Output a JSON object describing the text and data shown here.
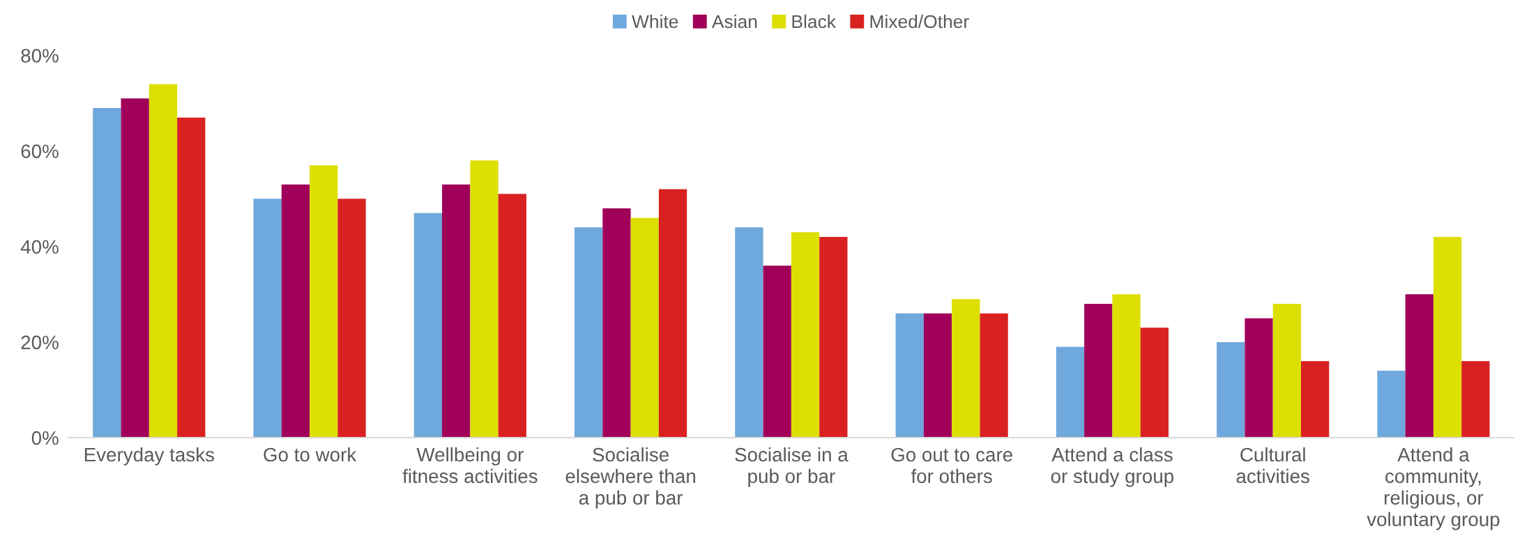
{
  "chart_data": {
    "type": "bar",
    "categories": [
      "Everyday tasks",
      "Go to work",
      "Wellbeing or\nfitness activities",
      "Socialise\nelsewhere than\na pub or bar",
      "Socialise in a\npub or bar",
      "Go out to care\nfor others",
      "Attend a class\nor study group",
      "Cultural\nactivities",
      "Attend a\ncommunity,\nreligious, or\nvoluntary group"
    ],
    "series": [
      {
        "name": "White",
        "color": "#6fa8dc",
        "values": [
          69,
          50,
          47,
          44,
          44,
          26,
          19,
          20,
          14
        ]
      },
      {
        "name": "Asian",
        "color": "#a0005a",
        "values": [
          71,
          53,
          53,
          48,
          36,
          26,
          28,
          25,
          30
        ]
      },
      {
        "name": "Black",
        "color": "#dddf00",
        "values": [
          74,
          57,
          58,
          46,
          43,
          29,
          30,
          28,
          42
        ]
      },
      {
        "name": "Mixed/Other",
        "color": "#d92121",
        "values": [
          67,
          50,
          51,
          52,
          42,
          26,
          23,
          16,
          16
        ]
      }
    ],
    "ylim": [
      0,
      80
    ],
    "yticks": [
      {
        "value": 0,
        "label": "0%"
      },
      {
        "value": 20,
        "label": "20%"
      },
      {
        "value": 40,
        "label": "40%"
      },
      {
        "value": 60,
        "label": "60%"
      },
      {
        "value": 80,
        "label": "80%"
      }
    ],
    "grid": false,
    "legend": "top"
  }
}
